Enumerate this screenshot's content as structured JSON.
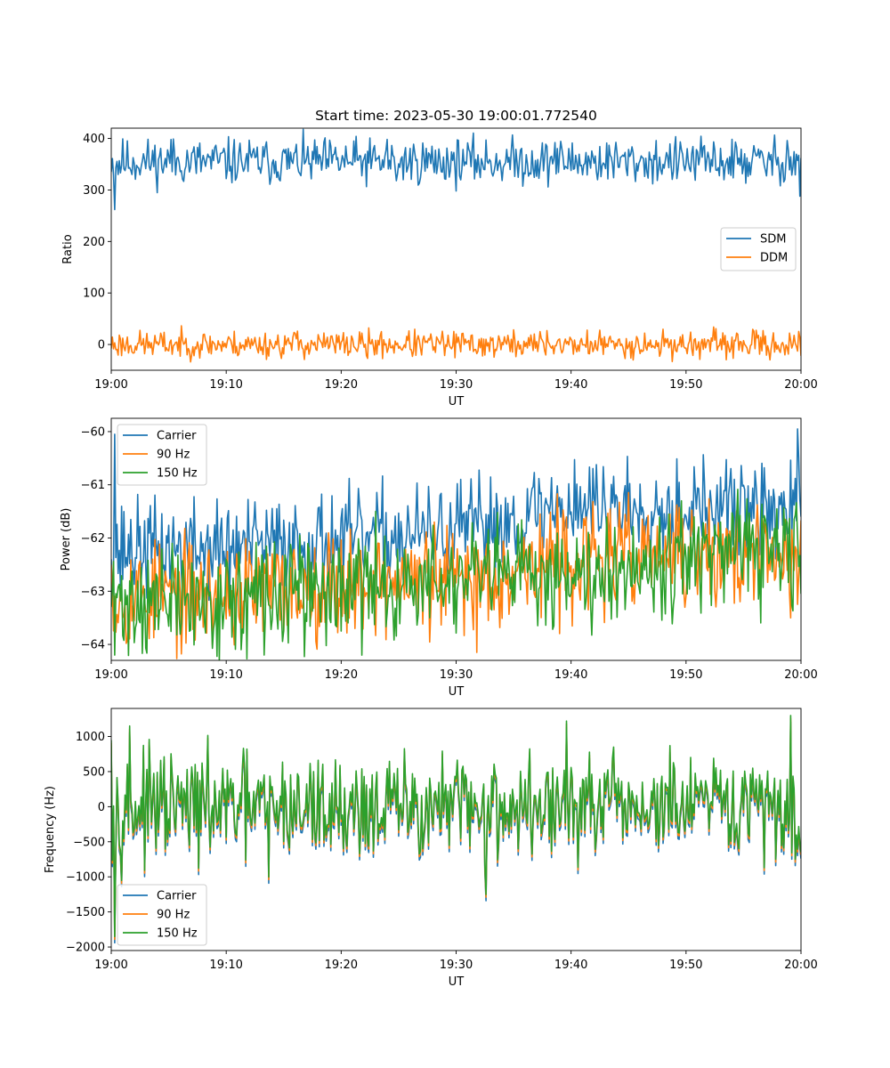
{
  "title": "Start time: 2023-05-30 19:00:01.772540",
  "chart_data": [
    {
      "type": "line",
      "xlabel": "UT",
      "ylabel": "Ratio",
      "xticks": [
        "19:00",
        "19:10",
        "19:20",
        "19:30",
        "19:40",
        "19:50",
        "20:00"
      ],
      "xlim_minutes": [
        0,
        60
      ],
      "yticks": [
        0,
        100,
        200,
        300,
        400
      ],
      "ylim": [
        -50,
        420
      ],
      "grid": false,
      "legend_position": "center-right",
      "series": [
        {
          "name": "SDM",
          "color": "#1f77b4",
          "base": 355,
          "noise": 22,
          "seed": 11,
          "keypoints": [
            [
              0,
              335
            ],
            [
              0.3,
              262
            ],
            [
              0.6,
              330
            ],
            [
              5.2,
              398
            ],
            [
              24,
              398
            ],
            [
              24.8,
              318
            ],
            [
              38.6,
              392
            ],
            [
              58.8,
              396
            ],
            [
              59.9,
              288
            ],
            [
              60,
              362
            ]
          ]
        },
        {
          "name": "DDM",
          "color": "#ff7f0e",
          "base": 0,
          "noise": 13,
          "seed": 23,
          "keypoints": [
            [
              0,
              -8
            ],
            [
              16.2,
              26
            ],
            [
              22.3,
              -27
            ],
            [
              37.9,
              27
            ],
            [
              60,
              -22
            ]
          ]
        }
      ]
    },
    {
      "type": "line",
      "xlabel": "UT",
      "ylabel": "Power (dB)",
      "xticks": [
        "19:00",
        "19:10",
        "19:20",
        "19:30",
        "19:40",
        "19:50",
        "20:00"
      ],
      "xlim_minutes": [
        0,
        60
      ],
      "yticks": [
        -64,
        -63,
        -62,
        -61,
        -60
      ],
      "ylim": [
        -64.3,
        -59.75
      ],
      "grid": false,
      "legend_position": "upper-left",
      "series": [
        {
          "name": "Carrier",
          "color": "#1f77b4",
          "seed": 37,
          "noise": 0.45,
          "trend": [
            [
              0,
              -62.2
            ],
            [
              10,
              -62.2
            ],
            [
              20,
              -62.05
            ],
            [
              30,
              -61.9
            ],
            [
              40,
              -61.35
            ],
            [
              50,
              -61.45
            ],
            [
              60,
              -61.5
            ]
          ],
          "keypoints": [
            [
              0,
              -62.4
            ],
            [
              0.3,
              -60.05
            ],
            [
              0.8,
              -62.9
            ],
            [
              59.7,
              -59.95
            ],
            [
              60,
              -61.6
            ]
          ]
        },
        {
          "name": "90 Hz",
          "color": "#ff7f0e",
          "seed": 53,
          "noise": 0.5,
          "trend": [
            [
              0,
              -63.1
            ],
            [
              10,
              -63.05
            ],
            [
              20,
              -62.85
            ],
            [
              30,
              -62.8
            ],
            [
              40,
              -62.4
            ],
            [
              50,
              -62.35
            ],
            [
              60,
              -62.4
            ]
          ],
          "keypoints": [
            [
              0,
              -62.5
            ],
            [
              31.8,
              -64.15
            ],
            [
              59.1,
              -63.5
            ]
          ]
        },
        {
          "name": "150 Hz",
          "color": "#2ca02c",
          "seed": 71,
          "noise": 0.5,
          "trend": [
            [
              0,
              -63.2
            ],
            [
              10,
              -63.2
            ],
            [
              20,
              -62.95
            ],
            [
              30,
              -62.85
            ],
            [
              40,
              -62.6
            ],
            [
              50,
              -62.35
            ],
            [
              60,
              -62.3
            ]
          ],
          "keypoints": [
            [
              0,
              -63.3
            ],
            [
              0.3,
              -64.2
            ],
            [
              11.8,
              -64.27
            ],
            [
              60,
              -63.05
            ]
          ]
        }
      ]
    },
    {
      "type": "line",
      "xlabel": "UT",
      "ylabel": "Frequency (Hz)",
      "xticks": [
        "19:00",
        "19:10",
        "19:20",
        "19:30",
        "19:40",
        "19:50",
        "20:00"
      ],
      "xlim_minutes": [
        0,
        60
      ],
      "yticks": [
        -2000,
        -1500,
        -1000,
        -500,
        0,
        500,
        1000
      ],
      "ylim": [
        -2050,
        1400
      ],
      "grid": false,
      "legend_position": "lower-left",
      "base_seed": 97,
      "base_noise": 360,
      "base_keypoints": [
        [
          0,
          950
        ],
        [
          0.3,
          -1850
        ],
        [
          1.6,
          1150
        ],
        [
          13.7,
          -1000
        ],
        [
          32.6,
          -1250
        ],
        [
          39.6,
          1220
        ],
        [
          59.1,
          1300
        ],
        [
          59.5,
          -750
        ],
        [
          60,
          -650
        ]
      ],
      "series": [
        {
          "name": "Carrier",
          "color": "#1f77b4",
          "offset": -90
        },
        {
          "name": "90 Hz",
          "color": "#ff7f0e",
          "offset": -40
        },
        {
          "name": "150 Hz",
          "color": "#2ca02c",
          "offset": 0
        }
      ]
    }
  ]
}
